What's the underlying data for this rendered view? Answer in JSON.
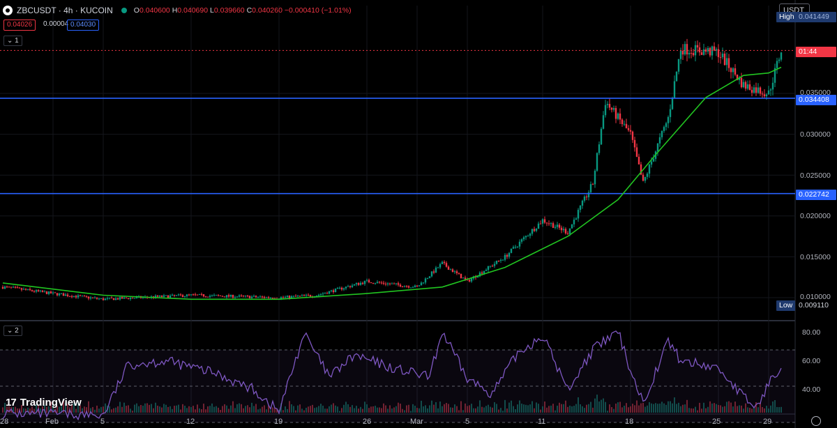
{
  "header": {
    "symbol": "ZBCUSDT · 4h · KUCOIN",
    "open_label": "O",
    "open": "0.040600",
    "high_label": "H",
    "high": "0.040690",
    "low_label": "L",
    "low": "0.039660",
    "close_label": "C",
    "close": "0.040260",
    "change": "−0.000410 (−1.01%)",
    "sell_price": "0.04026",
    "spread": "0.00004",
    "buy_price": "0.04030"
  },
  "panes": {
    "main_tag": "1",
    "rsi_tag": "2"
  },
  "toolbar": {
    "currency": "USDT"
  },
  "price_axis": {
    "ticks": [
      "0.035000",
      "0.030000",
      "0.025000",
      "0.020000",
      "0.015000",
      "0.010000"
    ],
    "high_label": "High",
    "high_value": "0.041449",
    "low_label": "Low",
    "low_value": "0.009110",
    "countdown": "01:44",
    "line1_value": "0.034408",
    "line2_value": "0.022742"
  },
  "rsi_axis": {
    "ticks": [
      "80.00",
      "60.00",
      "40.00"
    ]
  },
  "time_axis": {
    "labels": [
      "28",
      "Feb",
      "5",
      "12",
      "19",
      "26",
      "Mar",
      "5",
      "11",
      "18",
      "25",
      "29"
    ]
  },
  "branding": {
    "logo_text": "TradingView"
  },
  "colors": {
    "up": "#089981",
    "down": "#f23645",
    "ma": "#21c521",
    "hline": "#2962ff",
    "rsi": "#7e57c2",
    "current_price_line": "#f23645"
  },
  "chart_data": {
    "type": "candlestick",
    "series": [
      {
        "name": "ZBCUSDT 4h",
        "kind": "ohlc",
        "anchors": [
          {
            "t": "2024-01-28",
            "close": 0.0113
          },
          {
            "t": "2024-02-01",
            "close": 0.0105
          },
          {
            "t": "2024-02-05",
            "close": 0.0098
          },
          {
            "t": "2024-02-12",
            "close": 0.0103
          },
          {
            "t": "2024-02-19",
            "close": 0.01
          },
          {
            "t": "2024-02-22",
            "close": 0.0103
          },
          {
            "t": "2024-02-26",
            "close": 0.012
          },
          {
            "t": "2024-03-01",
            "close": 0.0113
          },
          {
            "t": "2024-03-03",
            "close": 0.0142
          },
          {
            "t": "2024-03-05",
            "close": 0.012
          },
          {
            "t": "2024-03-08",
            "close": 0.015
          },
          {
            "t": "2024-03-11",
            "close": 0.0195
          },
          {
            "t": "2024-03-13",
            "close": 0.018
          },
          {
            "t": "2024-03-15",
            "close": 0.024
          },
          {
            "t": "2024-03-16",
            "close": 0.034
          },
          {
            "t": "2024-03-18",
            "close": 0.03
          },
          {
            "t": "2024-03-19",
            "close": 0.024
          },
          {
            "t": "2024-03-21",
            "close": 0.032
          },
          {
            "t": "2024-03-22",
            "close": 0.0405
          },
          {
            "t": "2024-03-25",
            "close": 0.04
          },
          {
            "t": "2024-03-27",
            "close": 0.036
          },
          {
            "t": "2024-03-29",
            "close": 0.035
          },
          {
            "t": "2024-03-30",
            "close": 0.0403
          }
        ]
      },
      {
        "name": "MA",
        "kind": "line",
        "points": [
          {
            "t": "2024-01-28",
            "v": 0.0118
          },
          {
            "t": "2024-02-05",
            "v": 0.0103
          },
          {
            "t": "2024-02-12",
            "v": 0.0098
          },
          {
            "t": "2024-02-19",
            "v": 0.0098
          },
          {
            "t": "2024-02-26",
            "v": 0.0105
          },
          {
            "t": "2024-03-03",
            "v": 0.0113
          },
          {
            "t": "2024-03-08",
            "v": 0.0137
          },
          {
            "t": "2024-03-13",
            "v": 0.0175
          },
          {
            "t": "2024-03-17",
            "v": 0.022
          },
          {
            "t": "2024-03-20",
            "v": 0.0275
          },
          {
            "t": "2024-03-24",
            "v": 0.0345
          },
          {
            "t": "2024-03-27",
            "v": 0.0372
          },
          {
            "t": "2024-03-29",
            "v": 0.0375
          },
          {
            "t": "2024-03-30",
            "v": 0.0382
          }
        ]
      },
      {
        "name": "RSI",
        "kind": "oscillator",
        "points": [
          {
            "t": "2024-01-28",
            "v": 35
          },
          {
            "t": "2024-02-05",
            "v": 34
          },
          {
            "t": "2024-02-07",
            "v": 62
          },
          {
            "t": "2024-02-10",
            "v": 64
          },
          {
            "t": "2024-02-14",
            "v": 57
          },
          {
            "t": "2024-02-17",
            "v": 48
          },
          {
            "t": "2024-02-19",
            "v": 36
          },
          {
            "t": "2024-02-21",
            "v": 79
          },
          {
            "t": "2024-02-23",
            "v": 55
          },
          {
            "t": "2024-02-25",
            "v": 67
          },
          {
            "t": "2024-02-28",
            "v": 60
          },
          {
            "t": "2024-03-02",
            "v": 55
          },
          {
            "t": "2024-03-03",
            "v": 80
          },
          {
            "t": "2024-03-05",
            "v": 54
          },
          {
            "t": "2024-03-07",
            "v": 46
          },
          {
            "t": "2024-03-09",
            "v": 68
          },
          {
            "t": "2024-03-11",
            "v": 78
          },
          {
            "t": "2024-03-13",
            "v": 48
          },
          {
            "t": "2024-03-15",
            "v": 70
          },
          {
            "t": "2024-03-17",
            "v": 80
          },
          {
            "t": "2024-03-18",
            "v": 59
          },
          {
            "t": "2024-03-19",
            "v": 41
          },
          {
            "t": "2024-03-21",
            "v": 75
          },
          {
            "t": "2024-03-22",
            "v": 64
          },
          {
            "t": "2024-03-25",
            "v": 60
          },
          {
            "t": "2024-03-27",
            "v": 44
          },
          {
            "t": "2024-03-28",
            "v": 38
          },
          {
            "t": "2024-03-29",
            "v": 51
          },
          {
            "t": "2024-03-30",
            "v": 62
          }
        ]
      }
    ],
    "horizontal_lines": [
      0.034408,
      0.022742
    ],
    "current_price": 0.04026,
    "rsi_levels": [
      70,
      50,
      30
    ],
    "ylim": [
      0.0088,
      0.0425
    ],
    "rsi_ylim": [
      25,
      90
    ],
    "grid": true,
    "title": "",
    "xlabel": "",
    "ylabel": ""
  }
}
